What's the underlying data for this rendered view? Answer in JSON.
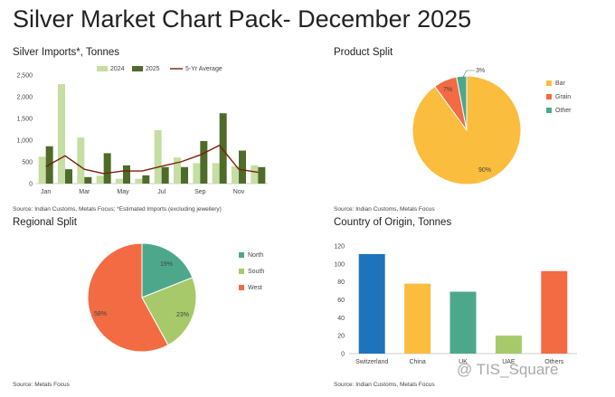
{
  "page_title": "Silver Market Chart Pack- December 2025",
  "watermark": "@ TIS_Square",
  "chart_data": [
    {
      "id": "imports",
      "type": "bar",
      "title": "Silver Imports*, Tonnes",
      "source": "Source: Indian Customs, Metals Focus; *Estimated Imports (excluding jewellery)",
      "categories": [
        "Jan",
        "Feb",
        "Mar",
        "Apr",
        "May",
        "Jun",
        "Jul",
        "Aug",
        "Sep",
        "Oct",
        "Nov",
        "Dec"
      ],
      "x_tick_labels": [
        "Jan",
        "",
        "Mar",
        "",
        "May",
        "",
        "Jul",
        "",
        "Sep",
        "",
        "Nov",
        ""
      ],
      "y_ticks": [
        "0",
        "500",
        "1,000",
        "1,500",
        "2,000",
        "2,500"
      ],
      "ylim": [
        0,
        2500
      ],
      "legend_position": "top",
      "series": [
        {
          "name": "2024",
          "type": "bar",
          "color": "#c5dea3",
          "values": [
            620,
            2290,
            1060,
            180,
            110,
            110,
            1230,
            600,
            470,
            470,
            400,
            420
          ]
        },
        {
          "name": "2025",
          "type": "bar",
          "color": "#4f6b2a",
          "values": [
            860,
            330,
            150,
            700,
            420,
            190,
            380,
            380,
            980,
            1620,
            760,
            380
          ]
        },
        {
          "name": "5-Yr Average",
          "type": "line",
          "color": "#7a1f0a",
          "values": [
            390,
            640,
            330,
            230,
            290,
            290,
            400,
            500,
            660,
            880,
            330,
            260
          ]
        }
      ]
    },
    {
      "id": "product",
      "type": "pie",
      "title": "Product Split",
      "source": "Source: Indian Customs, Metals Focus",
      "legend_position": "right",
      "slices": [
        {
          "name": "Bar",
          "value": 90,
          "label": "90%",
          "color": "#fbbd3d"
        },
        {
          "name": "Grain",
          "value": 7,
          "label": "7%",
          "color": "#f26b43"
        },
        {
          "name": "Other",
          "value": 3,
          "label": "3%",
          "color": "#4da88b"
        }
      ]
    },
    {
      "id": "regional",
      "type": "pie",
      "title": "Regional Split",
      "source": "Source: Metals Focus",
      "legend_position": "right",
      "slices": [
        {
          "name": "North",
          "value": 19,
          "label": "19%",
          "color": "#4da88b"
        },
        {
          "name": "South",
          "value": 23,
          "label": "23%",
          "color": "#a7c96a"
        },
        {
          "name": "West",
          "value": 58,
          "label": "58%",
          "color": "#f26b43"
        }
      ]
    },
    {
      "id": "origin",
      "type": "bar",
      "title": "Country of Origin, Tonnes",
      "source": "Source: Indian Customs, Metals Focus",
      "categories": [
        "Switzerland",
        "China",
        "UK",
        "UAE",
        "Others"
      ],
      "values": [
        111,
        78,
        69,
        20,
        92
      ],
      "colors": [
        "#1f73bc",
        "#fbbd3d",
        "#4da88b",
        "#a7c96a",
        "#f26b43"
      ],
      "y_ticks": [
        "0",
        "20",
        "40",
        "60",
        "80",
        "100",
        "120"
      ],
      "ylim": [
        0,
        120
      ]
    }
  ]
}
